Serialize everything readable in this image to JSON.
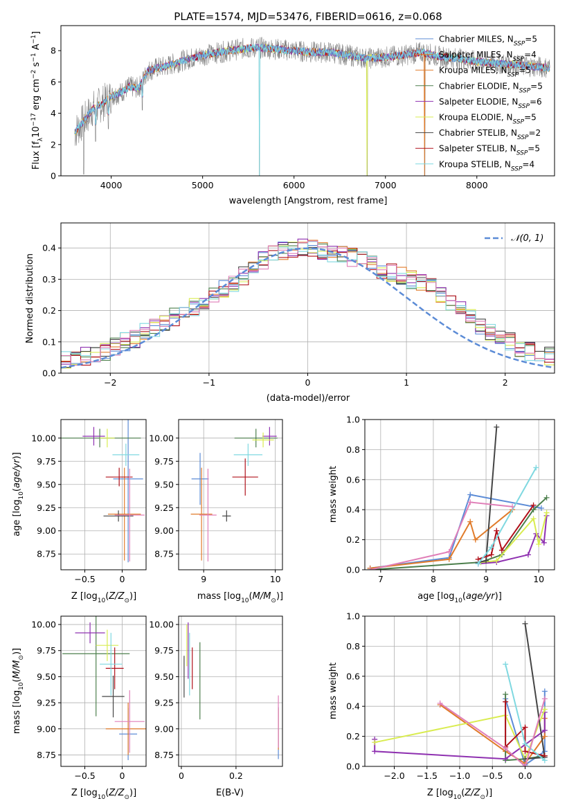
{
  "colors": [
    "#5b8bd6",
    "#e07b2a",
    "#4c7f4c",
    "#8e30b0",
    "#d9ec50",
    "#444444",
    "#b0101a",
    "#7fd8e0",
    "#e07fb8",
    "#808080"
  ],
  "chart_data": [
    {
      "id": "spectrum",
      "type": "line",
      "title": "PLATE=1574, MJD=53476, FIBERID=0616, z=0.068",
      "xlabel": "wavelength [Angstrom, rest frame]",
      "ylabel": "Flux [f_λ 10^-17 erg cm^-2 s^-1 A^-1]",
      "xlim": [
        3450,
        8850
      ],
      "ylim": [
        0,
        9.6
      ],
      "xticks": [
        4000,
        5000,
        6000,
        7000,
        8000
      ],
      "yticks": [
        0,
        2,
        4,
        6,
        8
      ],
      "grid": false,
      "legend_position": "top-right",
      "legend": [
        {
          "name": "Chabrier MILES",
          "nssp": "5",
          "color": "#5b8bd6"
        },
        {
          "name": "Salpeter MILES",
          "nssp": "4",
          "color": "#e07b2a"
        },
        {
          "name": "Kroupa MILES",
          "nssp": "5",
          "color": "#e07b2a"
        },
        {
          "name": "Chabrier ELODIE",
          "nssp": "5",
          "color": "#4c7f4c"
        },
        {
          "name": "Salpeter ELODIE",
          "nssp": "6",
          "color": "#8e30b0"
        },
        {
          "name": "Kroupa ELODIE",
          "nssp": "5",
          "color": "#d9ec50"
        },
        {
          "name": "Chabrier STELIB",
          "nssp": "2",
          "color": "#444444"
        },
        {
          "name": "Salpeter STELIB",
          "nssp": "5",
          "color": "#b0101a"
        },
        {
          "name": "Kroupa STELIB",
          "nssp": "4",
          "color": "#7fd8e0"
        }
      ],
      "continuum": {
        "x": [
          3600,
          3700,
          3800,
          3900,
          4000,
          4100,
          4200,
          4300,
          4400,
          4500,
          4600,
          4800,
          5000,
          5200,
          5400,
          5600,
          5800,
          6000,
          6200,
          6400,
          6600,
          6800,
          7000,
          7200,
          7400,
          7600,
          7800,
          8000,
          8200,
          8400,
          8600,
          8800
        ],
        "y": [
          2.8,
          3.5,
          4.3,
          4.6,
          5.1,
          5.3,
          5.7,
          5.6,
          6.7,
          6.9,
          7.0,
          7.4,
          7.7,
          7.9,
          8.1,
          8.2,
          8.1,
          8.0,
          7.9,
          7.9,
          7.7,
          7.5,
          7.6,
          7.7,
          7.9,
          7.6,
          7.5,
          7.3,
          7.2,
          7.1,
          7.0,
          6.9
        ]
      },
      "absorption_features": [
        {
          "x": 3700,
          "depth_to": 0.1
        },
        {
          "x": 3830,
          "depth_to": 2.2
        },
        {
          "x": 3970,
          "depth_to": 3.0
        },
        {
          "x": 4340,
          "depth_to": 4.2
        },
        {
          "x": 5620,
          "depth_to": 0.0
        },
        {
          "x": 6800,
          "depth_to": 0.0
        },
        {
          "x": 7430,
          "depth_to": 0.0
        }
      ]
    },
    {
      "id": "residuals",
      "type": "histogram",
      "xlabel": "(data-model)/error",
      "ylabel": "Normed distribution",
      "xlim": [
        -2.5,
        2.5
      ],
      "ylim": [
        0,
        0.48
      ],
      "xticks": [
        -2,
        -1,
        0,
        1,
        2
      ],
      "yticks": [
        0.0,
        0.1,
        0.2,
        0.3,
        0.4
      ],
      "grid": true,
      "legend_position": "top-right",
      "reference_curve": {
        "label": "𝒩(0, 1)",
        "mean": 0,
        "sigma": 1,
        "color": "#5b8bd6"
      },
      "bin_width": 0.1,
      "base_heights": [
        0.03,
        0.035,
        0.04,
        0.045,
        0.055,
        0.06,
        0.07,
        0.085,
        0.1,
        0.11,
        0.13,
        0.145,
        0.16,
        0.18,
        0.2,
        0.21,
        0.23,
        0.25,
        0.27,
        0.29,
        0.31,
        0.33,
        0.36,
        0.38,
        0.39,
        0.4,
        0.4,
        0.4,
        0.39,
        0.38,
        0.38,
        0.37,
        0.36,
        0.35,
        0.33,
        0.32,
        0.31,
        0.3,
        0.29,
        0.28,
        0.25,
        0.22,
        0.2,
        0.18,
        0.15,
        0.13,
        0.11,
        0.1,
        0.08,
        0.07,
        0.06,
        0.055,
        0.05,
        0.045
      ]
    },
    {
      "id": "age-vs-z",
      "type": "errorbar",
      "xlabel": "Z [log10(Z/Z⊙)]",
      "ylabel": "age  [log10(age/yr)]",
      "xlim": [
        -0.82,
        0.32
      ],
      "ylim": [
        8.58,
        10.2
      ],
      "xticks": [
        -0.5,
        0.0
      ],
      "yticks": [
        8.75,
        9.0,
        9.25,
        9.5,
        9.75,
        10.0
      ],
      "points": [
        {
          "x": 0.08,
          "xerr": 0.2,
          "y": 9.56,
          "yerr": 0.9,
          "color": "#5b8bd6"
        },
        {
          "x": 0.03,
          "xerr": 0.22,
          "y": 9.18,
          "yerr": 0.5,
          "color": "#e07b2a"
        },
        {
          "x": -0.3,
          "xerr": 0.55,
          "y": 10.0,
          "yerr": 0.1,
          "color": "#4c7f4c"
        },
        {
          "x": -0.38,
          "xerr": 0.15,
          "y": 10.02,
          "yerr": 0.1,
          "color": "#8e30b0"
        },
        {
          "x": -0.2,
          "xerr": 0.1,
          "y": 10.0,
          "yerr": 0.1,
          "color": "#d9ec50"
        },
        {
          "x": -0.05,
          "xerr": 0.2,
          "y": 9.16,
          "yerr": 0.06,
          "color": "#444444"
        },
        {
          "x": -0.04,
          "xerr": 0.18,
          "y": 9.58,
          "yerr": 0.1,
          "color": "#b0101a"
        },
        {
          "x": 0.05,
          "xerr": 0.18,
          "y": 9.82,
          "yerr": 0.12,
          "color": "#7fd8e0"
        },
        {
          "x": 0.1,
          "xerr": 0.2,
          "y": 9.17,
          "yerr": 0.5,
          "color": "#e07fb8"
        }
      ]
    },
    {
      "id": "age-vs-mass",
      "type": "errorbar",
      "xlabel": "mass [log10(M/M⊙)]",
      "ylabel": "",
      "xlim": [
        8.65,
        10.1
      ],
      "ylim": [
        8.58,
        10.2
      ],
      "xticks": [
        9,
        10
      ],
      "yticks": [
        8.75,
        9.0,
        9.25,
        9.5,
        9.75,
        10.0
      ],
      "points": [
        {
          "x": 8.95,
          "xerr": 0.12,
          "y": 9.56,
          "yerr": 0.28,
          "color": "#5b8bd6"
        },
        {
          "x": 8.97,
          "xerr": 0.15,
          "y": 9.18,
          "yerr": 0.5,
          "color": "#e07b2a"
        },
        {
          "x": 9.73,
          "xerr": 0.3,
          "y": 10.0,
          "yerr": 0.1,
          "color": "#4c7f4c"
        },
        {
          "x": 9.92,
          "xerr": 0.1,
          "y": 10.02,
          "yerr": 0.1,
          "color": "#8e30b0"
        },
        {
          "x": 9.83,
          "xerr": 0.15,
          "y": 9.98,
          "yerr": 0.08,
          "color": "#d9ec50"
        },
        {
          "x": 9.32,
          "xerr": 0.06,
          "y": 9.16,
          "yerr": 0.06,
          "color": "#444444"
        },
        {
          "x": 9.58,
          "xerr": 0.18,
          "y": 9.58,
          "yerr": 0.2,
          "color": "#b0101a"
        },
        {
          "x": 9.62,
          "xerr": 0.2,
          "y": 9.82,
          "yerr": 0.12,
          "color": "#7fd8e0"
        },
        {
          "x": 9.06,
          "xerr": 0.12,
          "y": 9.17,
          "yerr": 0.5,
          "color": "#e07fb8"
        }
      ]
    },
    {
      "id": "mass-weight-vs-age",
      "type": "line",
      "xlabel": "age  [log10(age/yr)]",
      "ylabel": "mass weight",
      "xlim": [
        6.7,
        10.3
      ],
      "ylim": [
        0,
        1.0
      ],
      "xticks": [
        7,
        8,
        9,
        10
      ],
      "yticks": [
        0.0,
        0.2,
        0.4,
        0.6,
        0.8,
        1.0
      ],
      "grid": true,
      "series": [
        {
          "color": "#5b8bd6",
          "x": [
            6.8,
            8.3,
            8.7,
            10.05
          ],
          "y": [
            0.01,
            0.08,
            0.5,
            0.41
          ]
        },
        {
          "color": "#e07b2a",
          "x": [
            6.8,
            8.3,
            8.7,
            8.8,
            9.5
          ],
          "y": [
            0.01,
            0.07,
            0.32,
            0.2,
            0.4
          ]
        },
        {
          "color": "#4c7f4c",
          "x": [
            6.8,
            8.9,
            9.3,
            9.9,
            10.15
          ],
          "y": [
            0.0,
            0.05,
            0.1,
            0.4,
            0.48
          ]
        },
        {
          "color": "#8e30b0",
          "x": [
            8.85,
            9.2,
            9.8,
            9.95,
            10.1,
            10.15
          ],
          "y": [
            0.04,
            0.05,
            0.1,
            0.24,
            0.18,
            0.36
          ]
        },
        {
          "color": "#d9ec50",
          "x": [
            8.9,
            9.2,
            9.9,
            10.0,
            10.15
          ],
          "y": [
            0.05,
            0.06,
            0.34,
            0.17,
            0.38
          ]
        },
        {
          "color": "#444444",
          "x": [
            8.85,
            9.0,
            9.2
          ],
          "y": [
            0.05,
            0.06,
            0.95
          ]
        },
        {
          "color": "#b0101a",
          "x": [
            8.85,
            9.1,
            9.2,
            9.3,
            9.9
          ],
          "y": [
            0.07,
            0.1,
            0.26,
            0.13,
            0.43
          ]
        },
        {
          "color": "#7fd8e0",
          "x": [
            8.85,
            9.1,
            9.95
          ],
          "y": [
            0.04,
            0.15,
            0.68
          ]
        },
        {
          "color": "#e07fb8",
          "x": [
            6.8,
            8.3,
            8.7,
            9.5
          ],
          "y": [
            0.0,
            0.12,
            0.45,
            0.42
          ]
        }
      ]
    },
    {
      "id": "mass-vs-z",
      "type": "errorbar",
      "xlabel": "Z [log10(Z/Z⊙)]",
      "ylabel": "mass [log10(M/M⊙)]",
      "xlim": [
        -0.82,
        0.32
      ],
      "ylim": [
        8.64,
        10.08
      ],
      "xticks": [
        -0.5,
        0.0
      ],
      "yticks": [
        8.75,
        9.0,
        9.25,
        9.5,
        9.75,
        10.0
      ],
      "points": [
        {
          "x": 0.08,
          "xerr": 0.12,
          "y": 8.95,
          "yerr": 0.25,
          "color": "#5b8bd6"
        },
        {
          "x": 0.08,
          "xerr": 0.3,
          "y": 9.0,
          "yerr": 0.25,
          "color": "#e07b2a"
        },
        {
          "x": -0.35,
          "xerr": 0.45,
          "y": 9.72,
          "yerr": 0.6,
          "color": "#4c7f4c"
        },
        {
          "x": -0.43,
          "xerr": 0.2,
          "y": 9.92,
          "yerr": 0.1,
          "color": "#8e30b0"
        },
        {
          "x": -0.2,
          "xerr": 0.15,
          "y": 9.8,
          "yerr": 0.15,
          "color": "#d9ec50"
        },
        {
          "x": -0.12,
          "xerr": 0.15,
          "y": 9.31,
          "yerr": 0.2,
          "color": "#444444"
        },
        {
          "x": -0.1,
          "xerr": 0.12,
          "y": 9.58,
          "yerr": 0.2,
          "color": "#b0101a"
        },
        {
          "x": -0.15,
          "xerr": 0.15,
          "y": 9.62,
          "yerr": 0.3,
          "color": "#7fd8e0"
        },
        {
          "x": 0.1,
          "xerr": 0.2,
          "y": 9.07,
          "yerr": 0.3,
          "color": "#e07fb8"
        }
      ]
    },
    {
      "id": "mass-vs-ebv",
      "type": "errorbar",
      "xlabel": "E(B-V)",
      "ylabel": "",
      "xlim": [
        -0.01,
        0.37
      ],
      "ylim": [
        8.64,
        10.08
      ],
      "xticks": [
        0.0,
        0.2
      ],
      "yticks": [
        8.75,
        9.0,
        9.25,
        9.5,
        9.75,
        10.0
      ],
      "points": [
        {
          "x": 0.355,
          "xerr": 0,
          "y": 8.96,
          "yerr": 0.25,
          "color": "#5b8bd6"
        },
        {
          "x": 0.355,
          "xerr": 0,
          "y": 9.0,
          "yerr": 0.2,
          "color": "#e07b2a"
        },
        {
          "x": 0.068,
          "xerr": 0,
          "y": 9.46,
          "yerr": 0.37,
          "color": "#4c7f4c"
        },
        {
          "x": 0.025,
          "xerr": 0,
          "y": 9.75,
          "yerr": 0.27,
          "color": "#8e30b0"
        },
        {
          "x": 0.02,
          "xerr": 0,
          "y": 9.8,
          "yerr": 0.2,
          "color": "#d9ec50"
        },
        {
          "x": 0.01,
          "xerr": 0,
          "y": 9.5,
          "yerr": 0.2,
          "color": "#444444"
        },
        {
          "x": 0.04,
          "xerr": 0,
          "y": 9.58,
          "yerr": 0.2,
          "color": "#b0101a"
        },
        {
          "x": 0.03,
          "xerr": 0,
          "y": 9.62,
          "yerr": 0.3,
          "color": "#7fd8e0"
        },
        {
          "x": 0.355,
          "xerr": 0,
          "y": 9.07,
          "yerr": 0.25,
          "color": "#e07fb8"
        }
      ]
    },
    {
      "id": "mass-weight-vs-z",
      "type": "line",
      "xlabel": "Z [log10(Z/Z⊙)]",
      "ylabel": "mass weight",
      "xlim": [
        -2.45,
        0.45
      ],
      "ylim": [
        0,
        1.0
      ],
      "xticks": [
        -2.0,
        -1.5,
        -1.0,
        -0.5,
        0.0
      ],
      "yticks": [
        0.0,
        0.2,
        0.4,
        0.6,
        0.8,
        1.0
      ],
      "grid": true,
      "series": [
        {
          "color": "#5b8bd6",
          "x": [
            -0.3,
            0.0,
            0.3,
            0.3
          ],
          "y": [
            0.45,
            0.01,
            0.1,
            0.5
          ]
        },
        {
          "color": "#e07b2a",
          "x": [
            -1.3,
            -0.3,
            0.0,
            0.3,
            0.3
          ],
          "y": [
            0.41,
            0.1,
            0.02,
            0.2,
            0.32
          ]
        },
        {
          "color": "#4c7f4c",
          "x": [
            -0.3,
            -0.3,
            0.0,
            0.3
          ],
          "y": [
            0.48,
            0.04,
            0.05,
            0.07
          ]
        },
        {
          "color": "#8e30b0",
          "x": [
            -2.3,
            -2.3,
            -0.3,
            0.3,
            0.3
          ],
          "y": [
            0.18,
            0.1,
            0.05,
            0.24,
            0.36
          ]
        },
        {
          "color": "#d9ec50",
          "x": [
            -2.3,
            -0.3,
            0.0,
            0.3
          ],
          "y": [
            0.16,
            0.34,
            0.05,
            0.38
          ]
        },
        {
          "color": "#444444",
          "x": [
            0.0,
            0.3,
            0.0
          ],
          "y": [
            0.95,
            0.06,
            0.05
          ]
        },
        {
          "color": "#b0101a",
          "x": [
            -0.3,
            -0.3,
            0.0,
            0.0,
            0.3
          ],
          "y": [
            0.43,
            0.13,
            0.26,
            0.1,
            0.07
          ]
        },
        {
          "color": "#7fd8e0",
          "x": [
            -0.3,
            0.0,
            0.3
          ],
          "y": [
            0.68,
            0.15,
            0.04
          ]
        },
        {
          "color": "#e07fb8",
          "x": [
            -1.3,
            -0.3,
            0.0,
            0.3
          ],
          "y": [
            0.42,
            0.12,
            0.0,
            0.45
          ]
        }
      ]
    }
  ]
}
